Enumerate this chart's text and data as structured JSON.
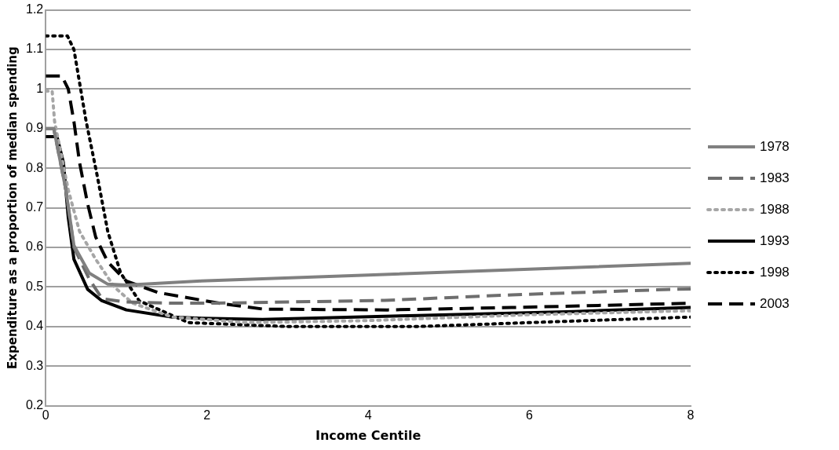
{
  "chart_data": {
    "type": "line",
    "xlabel": "Income Centile",
    "ylabel": "Expenditure as a proportion of median spending",
    "xlim": [
      0,
      8
    ],
    "xticks": [
      0,
      2,
      4,
      6,
      8
    ],
    "ylim": [
      0.2,
      1.2
    ],
    "yticks": [
      0.2,
      0.3,
      0.4,
      0.5,
      0.6,
      0.7,
      0.8,
      0.9,
      {
        "value": 1,
        "label": "1"
      },
      1.1,
      1.2
    ],
    "grid": "y",
    "legend": "right",
    "marker": "none",
    "series": [
      {
        "name": "1978",
        "color": "#808080",
        "line_style": "solid",
        "x": [
          0,
          0.1,
          0.25,
          0.35,
          0.54,
          0.77,
          1.0,
          1.93,
          4,
          6,
          8
        ],
        "values": [
          0.9,
          0.9,
          0.745,
          0.605,
          0.535,
          0.507,
          0.505,
          0.515,
          0.53,
          0.545,
          0.56
        ]
      },
      {
        "name": "1983",
        "color": "#6e6e6e",
        "line_style": "dashed",
        "x": [
          0,
          0.1,
          0.25,
          0.35,
          0.54,
          0.7,
          1.0,
          1.6,
          2.1,
          4.2,
          5.78,
          7.75,
          8
        ],
        "values": [
          0.9,
          0.9,
          0.745,
          0.6,
          0.52,
          0.47,
          0.462,
          0.459,
          0.459,
          0.466,
          0.48,
          0.494,
          0.495
        ]
      },
      {
        "name": "1988",
        "color": "#a6a6a6",
        "line_style": "dotted",
        "x": [
          0,
          0.08,
          0.11,
          0.28,
          0.42,
          0.62,
          0.85,
          1.08,
          1.57,
          2.5,
          4,
          6,
          8
        ],
        "values": [
          0.995,
          0.995,
          0.918,
          0.745,
          0.64,
          0.57,
          0.5,
          0.459,
          0.424,
          0.41,
          0.415,
          0.43,
          0.44
        ]
      },
      {
        "name": "1993",
        "color": "#000000",
        "line_style": "solid",
        "x": [
          0,
          0.14,
          0.22,
          0.28,
          0.35,
          0.52,
          0.69,
          1.0,
          1.57,
          1.93,
          2.69,
          4.62,
          6.55,
          8
        ],
        "values": [
          0.88,
          0.88,
          0.814,
          0.675,
          0.57,
          0.494,
          0.466,
          0.442,
          0.424,
          0.421,
          0.418,
          0.428,
          0.438,
          0.448
        ]
      },
      {
        "name": "1998",
        "color": "#000000",
        "line_style": "dotted",
        "x": [
          0,
          0.27,
          0.35,
          0.5,
          0.64,
          0.77,
          0.93,
          1.16,
          1.77,
          3,
          4.62,
          6,
          8
        ],
        "values": [
          1.134,
          1.134,
          1.1,
          0.92,
          0.78,
          0.64,
          0.535,
          0.465,
          0.41,
          0.4,
          0.4,
          0.41,
          0.424
        ]
      },
      {
        "name": "2003",
        "color": "#000000",
        "line_style": "dashed",
        "x": [
          0,
          0.2,
          0.28,
          0.35,
          0.42,
          0.52,
          0.62,
          0.77,
          1.0,
          1.39,
          2.15,
          2.7,
          4.24,
          5.78,
          8
        ],
        "values": [
          1.033,
          1.033,
          1.0,
          0.918,
          0.814,
          0.71,
          0.626,
          0.563,
          0.515,
          0.486,
          0.459,
          0.444,
          0.442,
          0.448,
          0.459
        ]
      }
    ]
  }
}
